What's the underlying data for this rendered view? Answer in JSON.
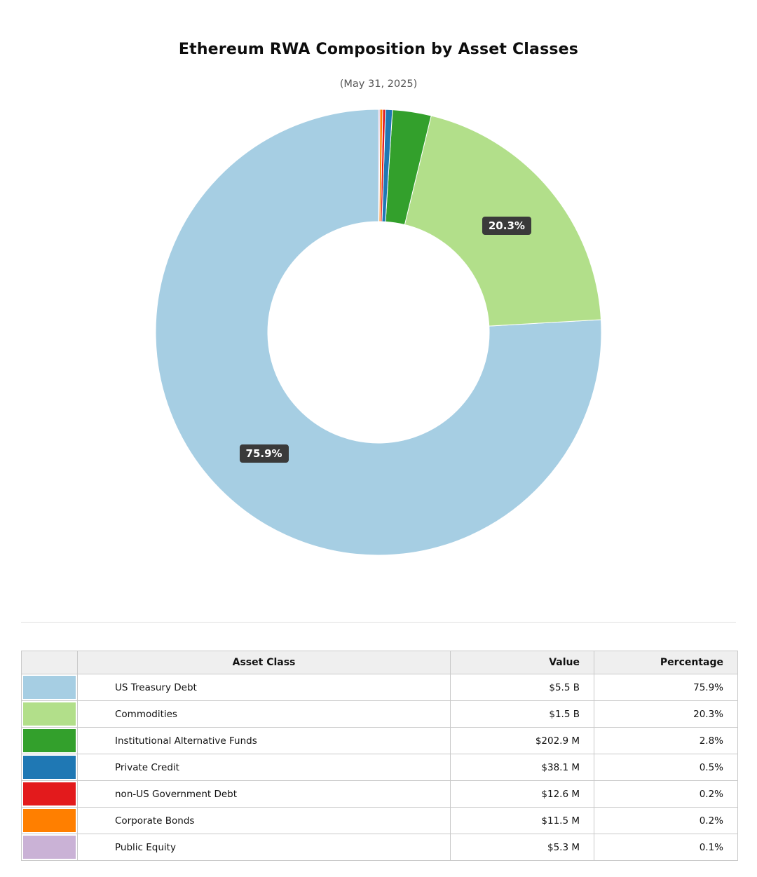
{
  "chart": {
    "title": "Ethereum RWA Composition by Asset Classes",
    "subtitle": "(May 31, 2025)"
  },
  "chart_data": {
    "type": "pie",
    "donut": true,
    "title": "Ethereum RWA Composition by Asset Classes",
    "subtitle": "(May 31, 2025)",
    "start_angle_deg": 90,
    "direction": "counterclockwise",
    "legend_position": "none",
    "slices": [
      {
        "label": "US Treasury Debt",
        "value_display": "$5.5 B",
        "percent": 75.9,
        "color": "#a6cee3"
      },
      {
        "label": "Commodities",
        "value_display": "$1.5 B",
        "percent": 20.3,
        "color": "#b2df8a"
      },
      {
        "label": "Institutional Alternative Funds",
        "value_display": "$202.9 M",
        "percent": 2.8,
        "color": "#33a02c"
      },
      {
        "label": "Private Credit",
        "value_display": "$38.1 M",
        "percent": 0.5,
        "color": "#1f78b4"
      },
      {
        "label": "non-US Government Debt",
        "value_display": "$12.6 M",
        "percent": 0.2,
        "color": "#e31a1c"
      },
      {
        "label": "Corporate Bonds",
        "value_display": "$11.5 M",
        "percent": 0.2,
        "color": "#ff7f00"
      },
      {
        "label": "Public Equity",
        "value_display": "$5.3 M",
        "percent": 0.1,
        "color": "#cab2d6"
      }
    ],
    "percent_labels": [
      {
        "text": "75.9%",
        "slice_index": 0
      },
      {
        "text": "20.3%",
        "slice_index": 1
      }
    ]
  },
  "table": {
    "headers": {
      "swatch": "",
      "asset_class": "Asset Class",
      "value": "Value",
      "percentage": "Percentage"
    },
    "rows": [
      {
        "color": "#a6cee3",
        "asset_class": "US Treasury Debt",
        "value": "$5.5 B",
        "percentage": "75.9%"
      },
      {
        "color": "#b2df8a",
        "asset_class": "Commodities",
        "value": "$1.5 B",
        "percentage": "20.3%"
      },
      {
        "color": "#33a02c",
        "asset_class": "Institutional Alternative Funds",
        "value": "$202.9 M",
        "percentage": "2.8%"
      },
      {
        "color": "#1f78b4",
        "asset_class": "Private Credit",
        "value": "$38.1 M",
        "percentage": "0.5%"
      },
      {
        "color": "#e31a1c",
        "asset_class": "non-US Government Debt",
        "value": "$12.6 M",
        "percentage": "0.2%"
      },
      {
        "color": "#ff7f00",
        "asset_class": "Corporate Bonds",
        "value": "$11.5 M",
        "percentage": "0.2%"
      },
      {
        "color": "#cab2d6",
        "asset_class": "Public Equity",
        "value": "$5.3 M",
        "percentage": "0.1%"
      }
    ]
  }
}
